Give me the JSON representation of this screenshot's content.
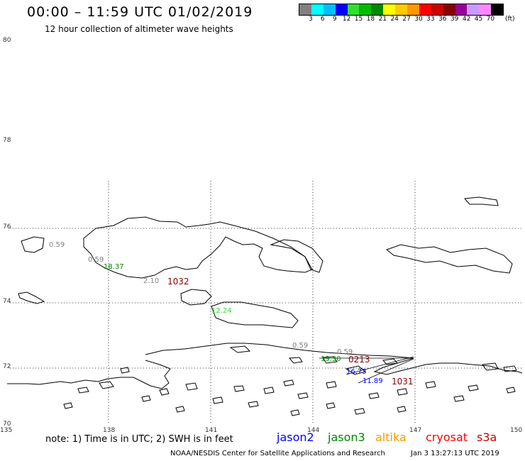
{
  "header": {
    "title": "00:00 – 11:59 UTC 01/02/2019",
    "subtitle": "12 hour collection of altimeter wave heights"
  },
  "legend": {
    "unit": "(ft)",
    "colors": [
      "#808080",
      "#00ffff",
      "#00bfff",
      "#0000ff",
      "#33dd33",
      "#00bb00",
      "#008800",
      "#ffff00",
      "#ffcc00",
      "#ff9900",
      "#ff0000",
      "#cc0000",
      "#880000",
      "#990099",
      "#cc99ff",
      "#ff88ff",
      "#000000"
    ],
    "ticks": [
      "3",
      "6",
      "9",
      "12",
      "15",
      "18",
      "21",
      "24",
      "27",
      "30",
      "33",
      "36",
      "39",
      "42",
      "45",
      "70"
    ]
  },
  "axes": {
    "lat_labels": [
      "80",
      "78",
      "76",
      "74",
      "72",
      "70"
    ],
    "lon_labels": [
      "135",
      "138",
      "141",
      "144",
      "147",
      "150"
    ]
  },
  "annotations": [
    {
      "text": "0.59",
      "color": "#808080"
    },
    {
      "text": "0.59",
      "color": "#808080"
    },
    {
      "text": "18.37",
      "color": "#008800"
    },
    {
      "text": "2.10",
      "color": "#808080"
    },
    {
      "text": "1032",
      "color": "#880000"
    },
    {
      "text": "12.24",
      "color": "#33dd33"
    },
    {
      "text": "0.59",
      "color": "#808080"
    },
    {
      "text": "0.59",
      "color": "#808080"
    },
    {
      "text": "19.30",
      "color": "#008800"
    },
    {
      "text": "0213",
      "color": "#880000"
    },
    {
      "text": "16.73",
      "color": "#0000ff"
    },
    {
      "text": "11.89",
      "color": "#0000ff"
    },
    {
      "text": "1031",
      "color": "#880000"
    }
  ],
  "footer": {
    "note": "note: 1) Time is in UTC; 2) SWH is in feet",
    "satellites": [
      {
        "name": "jason2",
        "color": "#0000ff"
      },
      {
        "name": "jason3",
        "color": "#008800"
      },
      {
        "name": "altika",
        "color": "#ff9900"
      },
      {
        "name": "cryosat",
        "color": "#ff0000"
      },
      {
        "name": "s3a",
        "color": "#cc0000"
      }
    ],
    "credit": "NOAA/NESDIS Center for Satellite Applications and Research",
    "timestamp": "Jan 3 13:27:13 UTC 2019"
  }
}
